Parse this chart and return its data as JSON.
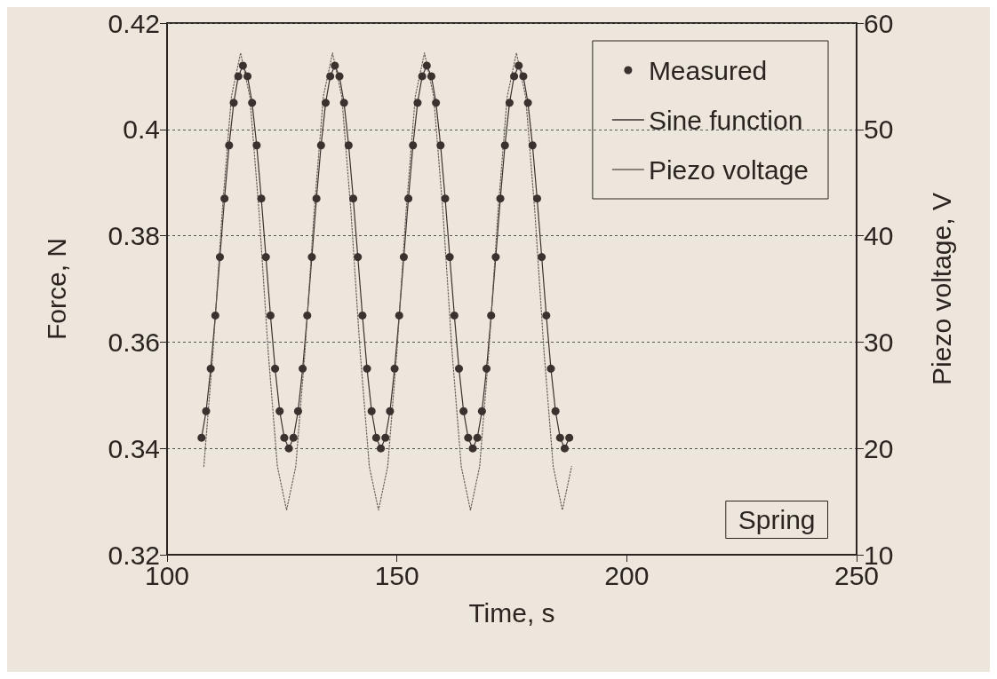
{
  "chart_data": {
    "type": "line",
    "xlabel": "Time, s",
    "ylabel": "Force, N",
    "y2label": "Piezo voltage, V",
    "xlim": [
      100,
      250
    ],
    "xticks": [
      100,
      150,
      200,
      250
    ],
    "ylim": [
      0.32,
      0.42
    ],
    "yticks": [
      0.32,
      0.34,
      0.36,
      0.38,
      0.4,
      0.42
    ],
    "y2lim": [
      10,
      60
    ],
    "y2ticks": [
      10,
      20,
      30,
      40,
      50,
      60
    ],
    "grid": "y",
    "legend": "top right",
    "annotations": [
      "Spring"
    ],
    "series": [
      {
        "name": "Measured",
        "type": "scatter",
        "marker": "circle",
        "color": "#3b312e",
        "x": [
          107.5,
          108.5,
          109.5,
          110.5,
          111.5,
          112.5,
          113.5,
          114.5,
          115.5,
          116.5,
          117.5,
          118.5,
          119.5,
          120.5,
          121.5,
          122.5,
          123.5,
          124.5,
          125.5,
          126.5,
          127.5,
          128.5,
          129.5,
          130.5,
          131.5,
          132.5,
          133.5,
          134.5,
          135.5,
          136.5,
          137.5,
          138.5,
          139.5,
          140.5,
          141.5,
          142.5,
          143.5,
          144.5,
          145.5,
          146.5,
          147.5,
          148.5,
          149.5,
          150.5,
          151.5,
          152.5,
          153.5,
          154.5,
          155.5,
          156.5,
          157.5,
          158.5,
          159.5,
          160.5,
          161.5,
          162.5,
          163.5,
          164.5,
          165.5,
          166.5,
          167.5,
          168.5,
          169.5,
          170.5,
          171.5,
          172.5,
          173.5,
          174.5,
          175.5,
          176.5,
          177.5,
          178.5,
          179.5,
          180.5,
          181.5,
          182.5,
          183.5,
          184.5,
          185.5,
          186.5,
          187.5
        ],
        "values": [
          0.342,
          0.347,
          0.355,
          0.365,
          0.376,
          0.387,
          0.397,
          0.405,
          0.41,
          0.412,
          0.41,
          0.405,
          0.397,
          0.387,
          0.376,
          0.365,
          0.355,
          0.347,
          0.342,
          0.34,
          0.342,
          0.347,
          0.355,
          0.365,
          0.376,
          0.387,
          0.397,
          0.405,
          0.41,
          0.412,
          0.41,
          0.405,
          0.397,
          0.387,
          0.376,
          0.365,
          0.355,
          0.347,
          0.342,
          0.34,
          0.342,
          0.347,
          0.355,
          0.365,
          0.376,
          0.387,
          0.397,
          0.405,
          0.41,
          0.412,
          0.41,
          0.405,
          0.397,
          0.387,
          0.376,
          0.365,
          0.355,
          0.347,
          0.342,
          0.34,
          0.342,
          0.347,
          0.355,
          0.365,
          0.376,
          0.387,
          0.397,
          0.405,
          0.41,
          0.412,
          0.41,
          0.405,
          0.397,
          0.387,
          0.376,
          0.365,
          0.355,
          0.347,
          0.342,
          0.34,
          0.342
        ]
      },
      {
        "name": "Sine function",
        "type": "line",
        "marker": "none",
        "line_style": "solid",
        "color": "#3b312e",
        "x": [
          107.5,
          108.5,
          109.5,
          110.5,
          111.5,
          112.5,
          113.5,
          114.5,
          115.5,
          116.5,
          117.5,
          118.5,
          119.5,
          120.5,
          121.5,
          122.5,
          123.5,
          124.5,
          125.5,
          126.5,
          127.5,
          128.5,
          129.5,
          130.5,
          131.5,
          132.5,
          133.5,
          134.5,
          135.5,
          136.5,
          137.5,
          138.5,
          139.5,
          140.5,
          141.5,
          142.5,
          143.5,
          144.5,
          145.5,
          146.5,
          147.5,
          148.5,
          149.5,
          150.5,
          151.5,
          152.5,
          153.5,
          154.5,
          155.5,
          156.5,
          157.5,
          158.5,
          159.5,
          160.5,
          161.5,
          162.5,
          163.5,
          164.5,
          165.5,
          166.5,
          167.5,
          168.5,
          169.5,
          170.5,
          171.5,
          172.5,
          173.5,
          174.5,
          175.5,
          176.5,
          177.5,
          178.5,
          179.5,
          180.5,
          181.5,
          182.5,
          183.5,
          184.5,
          185.5,
          186.5,
          187.5
        ],
        "values": [
          0.342,
          0.347,
          0.355,
          0.365,
          0.376,
          0.387,
          0.397,
          0.405,
          0.41,
          0.412,
          0.41,
          0.405,
          0.397,
          0.387,
          0.376,
          0.365,
          0.355,
          0.347,
          0.342,
          0.34,
          0.342,
          0.347,
          0.355,
          0.365,
          0.376,
          0.387,
          0.397,
          0.405,
          0.41,
          0.412,
          0.41,
          0.405,
          0.397,
          0.387,
          0.376,
          0.365,
          0.355,
          0.347,
          0.342,
          0.34,
          0.342,
          0.347,
          0.355,
          0.365,
          0.376,
          0.387,
          0.397,
          0.405,
          0.41,
          0.412,
          0.41,
          0.405,
          0.397,
          0.387,
          0.376,
          0.365,
          0.355,
          0.347,
          0.342,
          0.34,
          0.342,
          0.347,
          0.355,
          0.365,
          0.376,
          0.387,
          0.397,
          0.405,
          0.41,
          0.412,
          0.41,
          0.405,
          0.397,
          0.387,
          0.376,
          0.365,
          0.355,
          0.347,
          0.342,
          0.34,
          0.342
        ]
      },
      {
        "name": "Piezo voltage",
        "type": "line",
        "marker": "none",
        "line_style": "dotted",
        "axis": "y2",
        "color": "#6a605a",
        "x": [
          108,
          110,
          112,
          114,
          116,
          118,
          120,
          122,
          124,
          126,
          128,
          130,
          132,
          134,
          136,
          138,
          140,
          142,
          144,
          146,
          148,
          150,
          152,
          154,
          156,
          158,
          160,
          162,
          164,
          166,
          168,
          170,
          172,
          174,
          176,
          178,
          180,
          182,
          184,
          186,
          188
        ],
        "values": [
          18.3,
          29.1,
          42.3,
          53.1,
          57.2,
          53.1,
          42.3,
          29.1,
          18.3,
          14.2,
          18.3,
          29.1,
          42.3,
          53.1,
          57.2,
          53.1,
          42.3,
          29.1,
          18.3,
          14.2,
          18.3,
          29.1,
          42.3,
          53.1,
          57.2,
          53.1,
          42.3,
          29.1,
          18.3,
          14.2,
          18.3,
          29.1,
          42.3,
          53.1,
          57.2,
          53.1,
          42.3,
          29.1,
          18.3,
          14.2,
          18.3
        ]
      }
    ]
  }
}
